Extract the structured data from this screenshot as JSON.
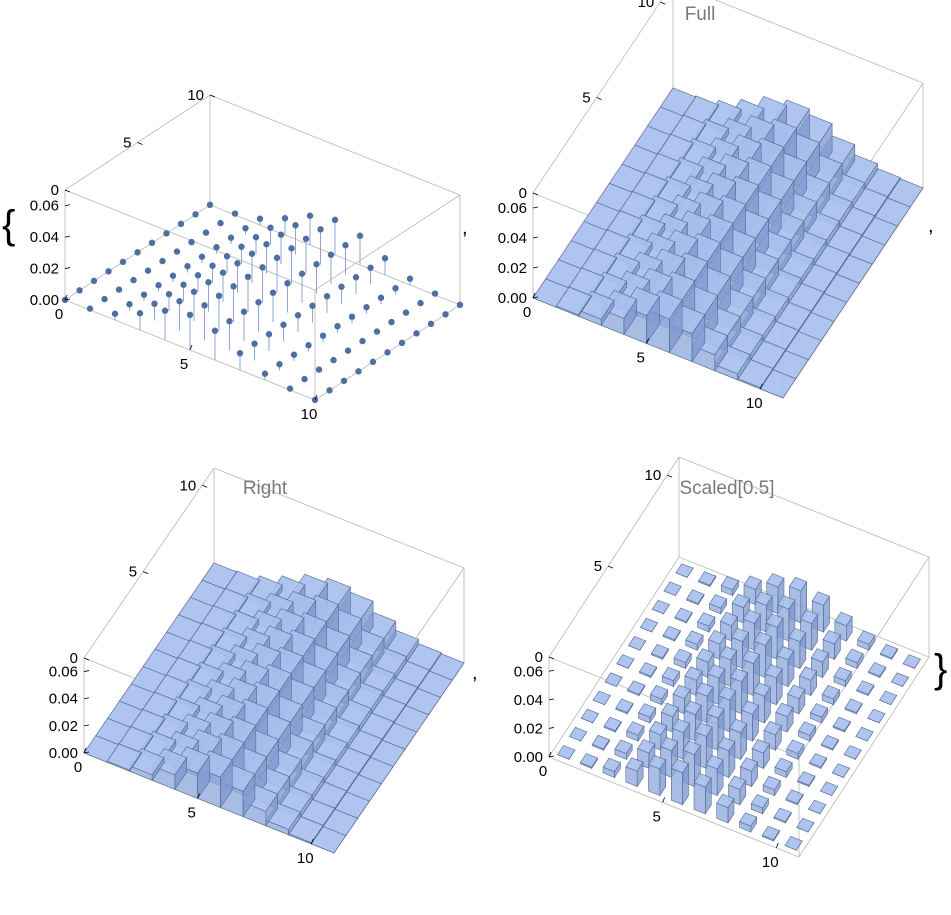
{
  "list": {
    "open_brace": "{",
    "close_brace": "}",
    "separator": ","
  },
  "colors": {
    "face_top": "#a8c0ee",
    "face_left": "#8fa9dc",
    "face_right": "#7d98cf",
    "edge": "#556b92",
    "point": "#4e6fa3",
    "stem": "#8ea6cf",
    "box": "#bdbdbd",
    "title": "#7a7a7a"
  },
  "chart_data": [
    {
      "type": "scatter3d",
      "title": "",
      "x_ticks": [
        "0",
        "5",
        "10"
      ],
      "y_ticks": [
        "0",
        "5",
        "10"
      ],
      "z_ticks": [
        "0.00",
        "0.02",
        "0.04",
        "0.06"
      ],
      "x_range": [
        0,
        10
      ],
      "y_range": [
        0,
        10
      ],
      "z_range": [
        0,
        0.07
      ],
      "grid": 11,
      "distribution": "binomial(10, 0.5) x uniform(0..10), stems on points"
    },
    {
      "type": "bar3d",
      "title": "Full",
      "x_ticks": [
        "0",
        "5",
        "10"
      ],
      "y_ticks": [
        "0",
        "5",
        "10"
      ],
      "z_ticks": [
        "0.00",
        "0.02",
        "0.04",
        "0.06"
      ],
      "x_range": [
        0,
        11
      ],
      "y_range": [
        0,
        11
      ],
      "z_range": [
        0,
        0.07
      ],
      "bar_width": 1.0,
      "bar_offset": 0.0
    },
    {
      "type": "bar3d",
      "title": "Right",
      "x_ticks": [
        "0",
        "5",
        "10"
      ],
      "y_ticks": [
        "0",
        "5",
        "10"
      ],
      "z_ticks": [
        "0.00",
        "0.02",
        "0.04",
        "0.06"
      ],
      "x_range": [
        0,
        11
      ],
      "y_range": [
        0,
        11
      ],
      "z_range": [
        0,
        0.07
      ],
      "bar_width": 1.0,
      "bar_offset": 0.5
    },
    {
      "type": "bar3d",
      "title": "Scaled[0.5]",
      "x_ticks": [
        "0",
        "5",
        "10"
      ],
      "y_ticks": [
        "0",
        "5",
        "10"
      ],
      "z_ticks": [
        "0.00",
        "0.02",
        "0.04",
        "0.06"
      ],
      "x_range": [
        0,
        11
      ],
      "y_range": [
        0,
        11
      ],
      "z_range": [
        0,
        0.07
      ],
      "bar_width": 0.5,
      "bar_offset": 0.0
    }
  ]
}
